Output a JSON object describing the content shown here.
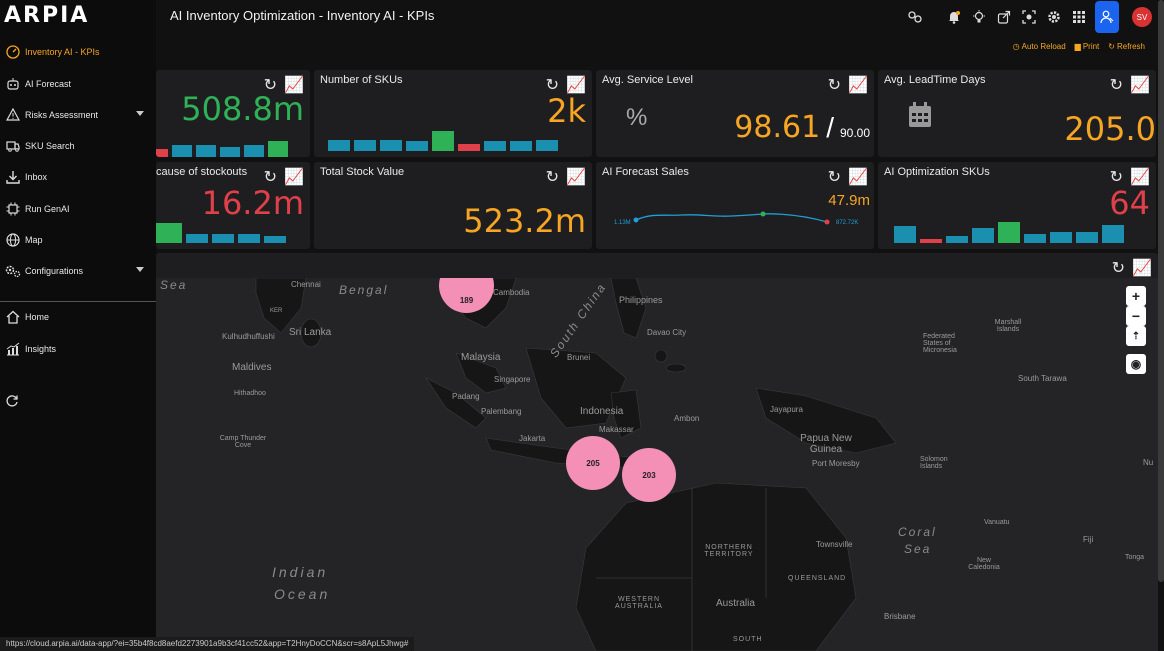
{
  "app": {
    "logo": "ARPIA",
    "title": "AI Inventory Optimization - Inventory AI - KPIs"
  },
  "sidebar": {
    "items": [
      {
        "label": "Inventory AI - KPIs",
        "icon": "gauge-icon"
      },
      {
        "label": "AI Forecast",
        "icon": "robot-icon"
      },
      {
        "label": "Risks Assessment",
        "icon": "warning-icon"
      },
      {
        "label": "SKU Search",
        "icon": "truck-icon"
      },
      {
        "label": "Inbox",
        "icon": "download-icon"
      },
      {
        "label": "Run GenAI",
        "icon": "chip-icon"
      },
      {
        "label": "Map",
        "icon": "globe-icon"
      },
      {
        "label": "Configurations",
        "icon": "gears-icon"
      },
      {
        "label": "Home",
        "icon": "home-icon"
      },
      {
        "label": "Insights",
        "icon": "chart-icon"
      }
    ]
  },
  "header": {
    "avatar": "SV"
  },
  "actions": {
    "auto_reload": "Auto Reload",
    "print": "Print",
    "refresh": "Refresh"
  },
  "cards": {
    "c1": {
      "title": "",
      "value": "508.8m"
    },
    "c2": {
      "title": "Number of SKUs",
      "value": "2k"
    },
    "c3": {
      "title": "Avg. Service Level",
      "value": "98.61",
      "sep": "/",
      "target": "90.00"
    },
    "c4": {
      "title": "Avg. LeadTime Days",
      "value": "205.0"
    },
    "c5": {
      "title": "cause of stockouts",
      "value": "16.2m"
    },
    "c6": {
      "title": "Total Stock Value",
      "value": "523.2m"
    },
    "c7": {
      "title": "AI Forecast Sales",
      "value": "47.9m",
      "start_label": "1.13M",
      "end_label": "872.72K"
    },
    "c8": {
      "title": "AI Optimization SKUs",
      "value": "64"
    }
  },
  "map": {
    "labels": [
      "Chennai",
      "Philippines",
      "Kulhudhuffushi",
      "Sri Lanka",
      "Davao City",
      "Federated States of Micronesia",
      "Marshall Islands",
      "Maldives",
      "Malaysia",
      "Brunei",
      "Singapore",
      "South Tarawa",
      "Hithadhoo",
      "Padang",
      "Palembang",
      "Indonesia",
      "Jayapura",
      "Ambon",
      "Makassar",
      "Jakarta",
      "Papua New Guinea",
      "Camp Thunder Cove",
      "Port Moresby",
      "Solomon Islands",
      "Vanuatu",
      "Fiji",
      "Townsville",
      "New Caledonia",
      "Tonga",
      "NORTHERN TERRITORY",
      "QUEENSLAND",
      "WESTERN AUSTRALIA",
      "Australia",
      "Brisbane",
      "SOUTH",
      "KER",
      "Nu",
      "Cambodia"
    ],
    "seas": [
      "Sea",
      "Bengal",
      "South China",
      "Indian",
      "Ocean",
      "Coral",
      "Sea"
    ],
    "clusters": [
      "189",
      "205",
      "203"
    ]
  },
  "statusbar": "https://cloud.arpia.ai/data-app/?ei=35b4f8cd8aefd2273901a9b3cf41cc52&app=T2HnyDoCCN&scr=s8ApL5Jhwg#",
  "colors": {
    "accent": "#f6a623",
    "green": "#2fb257",
    "red": "#e0404a",
    "bar_blue": "#1a8fb0",
    "cluster": "#f48fb5"
  }
}
